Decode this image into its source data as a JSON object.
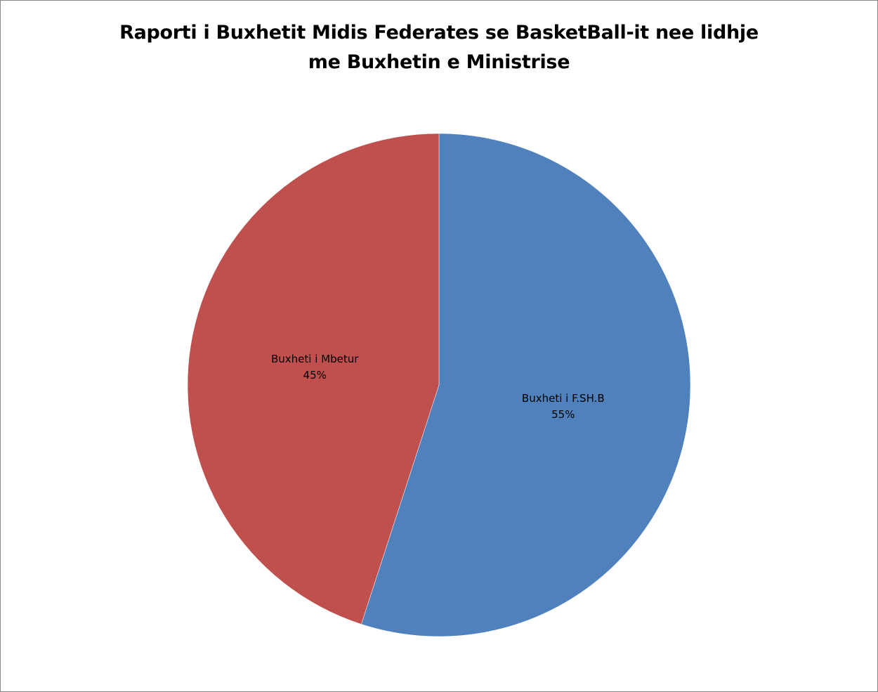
{
  "chart_data": {
    "type": "pie",
    "title_lines": [
      "Raporti i Buxhetit Midis Federates se BasketBall-it nee lidhje",
      "me Buxhetin e Ministrise"
    ],
    "categories": [
      "Buxheti i F.SH.B",
      "Buxheti i Mbetur"
    ],
    "values": [
      55,
      45
    ],
    "value_labels": [
      "55%",
      "45%"
    ],
    "colors": [
      "#4F81BD",
      "#C0504D"
    ],
    "legend": "none",
    "data_labels": "inside"
  }
}
